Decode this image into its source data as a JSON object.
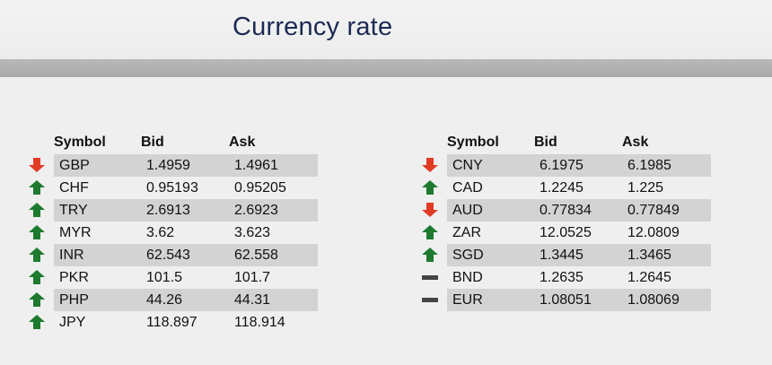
{
  "title": "Currency rate",
  "colors": {
    "up": "#1d7a2f",
    "down": "#e23b24",
    "flat": "#444444",
    "row_shade": "#d3d3d3",
    "title": "#1d2a55"
  },
  "columns": {
    "symbol": "Symbol",
    "bid": "Bid",
    "ask": "Ask"
  },
  "left_table": [
    {
      "trend": "down",
      "icon": "down-arrow-icon",
      "symbol": "GBP",
      "bid": "1.4959",
      "ask": "1.4961"
    },
    {
      "trend": "up",
      "icon": "up-arrow-icon",
      "symbol": "CHF",
      "bid": "0.95193",
      "ask": "0.95205"
    },
    {
      "trend": "up",
      "icon": "up-arrow-icon",
      "symbol": "TRY",
      "bid": "2.6913",
      "ask": "2.6923"
    },
    {
      "trend": "up",
      "icon": "up-arrow-icon",
      "symbol": "MYR",
      "bid": "3.62",
      "ask": "3.623"
    },
    {
      "trend": "up",
      "icon": "up-arrow-icon",
      "symbol": "INR",
      "bid": "62.543",
      "ask": "62.558"
    },
    {
      "trend": "up",
      "icon": "up-arrow-icon",
      "symbol": "PKR",
      "bid": "101.5",
      "ask": "101.7"
    },
    {
      "trend": "up",
      "icon": "up-arrow-icon",
      "symbol": "PHP",
      "bid": "44.26",
      "ask": "44.31"
    },
    {
      "trend": "up",
      "icon": "up-arrow-icon",
      "symbol": "JPY",
      "bid": "118.897",
      "ask": "118.914"
    }
  ],
  "right_table": [
    {
      "trend": "down",
      "icon": "down-arrow-icon",
      "symbol": "CNY",
      "bid": "6.1975",
      "ask": "6.1985"
    },
    {
      "trend": "up",
      "icon": "up-arrow-icon",
      "symbol": "CAD",
      "bid": "1.2245",
      "ask": "1.225"
    },
    {
      "trend": "down",
      "icon": "down-arrow-icon",
      "symbol": "AUD",
      "bid": "0.77834",
      "ask": "0.77849"
    },
    {
      "trend": "up",
      "icon": "up-arrow-icon",
      "symbol": "ZAR",
      "bid": "12.0525",
      "ask": "12.0809"
    },
    {
      "trend": "up",
      "icon": "up-arrow-icon",
      "symbol": "SGD",
      "bid": "1.3445",
      "ask": "1.3465"
    },
    {
      "trend": "flat",
      "icon": "unchanged-dash-icon",
      "symbol": "BND",
      "bid": "1.2635",
      "ask": "1.2645"
    },
    {
      "trend": "flat",
      "icon": "unchanged-dash-icon",
      "symbol": "EUR",
      "bid": "1.08051",
      "ask": "1.08069"
    }
  ]
}
